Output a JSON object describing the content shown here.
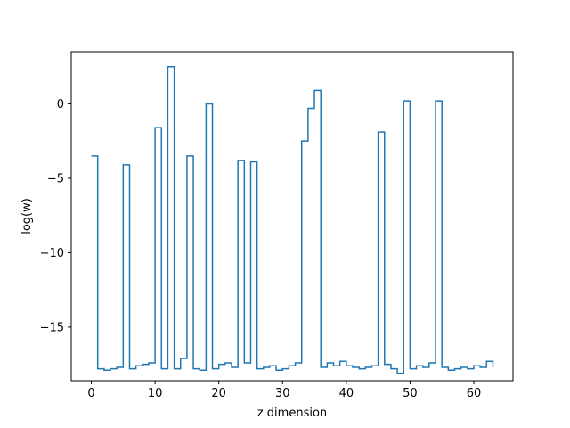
{
  "chart_data": {
    "type": "line",
    "drawstyle": "steps-post",
    "xlabel": "z dimension",
    "ylabel": "log(w)",
    "xlim": [
      -3.15,
      66.15
    ],
    "ylim": [
      -18.6,
      3.5
    ],
    "xticks": [
      0,
      10,
      20,
      30,
      40,
      50,
      60
    ],
    "yticks": [
      0,
      -5,
      -10,
      -15
    ],
    "grid": false,
    "line_color": "#1f77b4",
    "series": [
      {
        "x": [
          0,
          1,
          2,
          3,
          4,
          5,
          6,
          7,
          8,
          9,
          10,
          11,
          12,
          13,
          14,
          15,
          16,
          17,
          18,
          19,
          20,
          21,
          22,
          23,
          24,
          25,
          26,
          27,
          28,
          29,
          30,
          31,
          32,
          33,
          34,
          35,
          36,
          37,
          38,
          39,
          40,
          41,
          42,
          43,
          44,
          45,
          46,
          47,
          48,
          49,
          50,
          51,
          52,
          53,
          54,
          55,
          56,
          57,
          58,
          59,
          60,
          61,
          62,
          63
        ],
        "values": [
          -3.5,
          -17.8,
          -17.9,
          -17.8,
          -17.7,
          -4.1,
          -17.8,
          -17.6,
          -17.5,
          -17.4,
          -1.6,
          -17.8,
          2.5,
          -17.8,
          -17.1,
          -3.5,
          -17.8,
          -17.9,
          0.0,
          -17.8,
          -17.5,
          -17.4,
          -17.7,
          -3.8,
          -17.4,
          -3.9,
          -17.8,
          -17.7,
          -17.6,
          -17.9,
          -17.8,
          -17.6,
          -17.4,
          -2.5,
          -0.3,
          0.9,
          -17.7,
          -17.4,
          -17.6,
          -17.3,
          -17.6,
          -17.7,
          -17.8,
          -17.7,
          -17.6,
          -1.9,
          -17.5,
          -17.8,
          -18.1,
          0.2,
          -17.8,
          -17.6,
          -17.7,
          -17.4,
          0.2,
          -17.7,
          -17.9,
          -17.8,
          -17.7,
          -17.8,
          -17.6,
          -17.7,
          -17.3,
          -17.7
        ]
      }
    ]
  }
}
